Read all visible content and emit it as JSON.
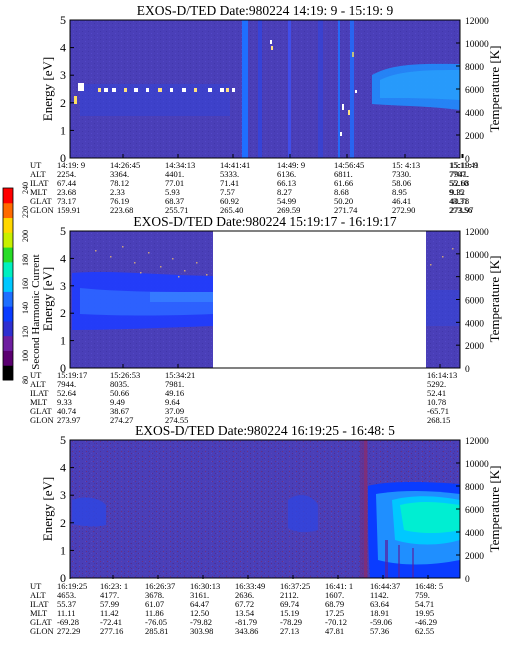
{
  "colors": {
    "background": "#4a3fb8",
    "colorbar": [
      "#000000",
      "#5a0070",
      "#6e1ea0",
      "#2f2fd0",
      "#0a3cff",
      "#1f6fff",
      "#00c8ff",
      "#00f0c0",
      "#28dc28",
      "#c8f000",
      "#ffd800",
      "#ff6a00",
      "#ff0000"
    ]
  },
  "colorbar": {
    "label": "Second Harmonic Current",
    "ticks": [
      "80",
      "100",
      "120",
      "140",
      "160",
      "180",
      "200",
      "220",
      "240"
    ]
  },
  "chart_data": [
    {
      "type": "heatmap",
      "title": "EXOS-D/TED   Date:980224  14:19: 9 - 15:19: 9",
      "ylabel": "Energy [eV]",
      "ylabel_right": "Temperature [K]",
      "ylim": [
        0,
        5
      ],
      "y_ticks": [
        "0",
        "1",
        "2",
        "3",
        "4",
        "5"
      ],
      "ylim_right": [
        0,
        12000
      ],
      "y_ticks_right": [
        "0",
        "2000",
        "4000",
        "6000",
        "8000",
        "10000",
        "12000"
      ],
      "data_gap": null,
      "orbit_table": {
        "labels": [
          "UT",
          "ALT",
          "ILAT",
          "MLT",
          "GLAT",
          "GLON"
        ],
        "columns": [
          {
            "ut": "14:19: 9",
            "alt": "2254.",
            "ilat": "67.44",
            "mlt": "23.68",
            "glat": "73.17",
            "glon": "159.91"
          },
          {
            "ut": "14:26:45",
            "alt": "3364.",
            "ilat": "78.12",
            "mlt": "2.33",
            "glat": "76.19",
            "glon": "223.68"
          },
          {
            "ut": "14:34:13",
            "alt": "4401.",
            "ilat": "77.01",
            "mlt": "5.93",
            "glat": "68.37",
            "glon": "255.71"
          },
          {
            "ut": "14:41:41",
            "alt": "5333.",
            "ilat": "71.41",
            "mlt": "7.57",
            "glat": "60.92",
            "glon": "265.40"
          },
          {
            "ut": "14:49: 9",
            "alt": "6136.",
            "ilat": "66.13",
            "mlt": "8.27",
            "glat": "54.99",
            "glon": "269.59"
          },
          {
            "ut": "14:56:45",
            "alt": "6811.",
            "ilat": "61.66",
            "mlt": "8.68",
            "glat": "50.20",
            "glon": "271.74"
          },
          {
            "ut": "15: 4:13",
            "alt": "7330.",
            "ilat": "58.06",
            "mlt": "8.95",
            "glat": "46.41",
            "glon": "272.90"
          },
          {
            "ut": "15:11:41",
            "alt": "7707.",
            "ilat": "55.10",
            "mlt": "9.15",
            "glat": "43.31",
            "glon": "273.56"
          },
          {
            "ut": "15:19: 9",
            "alt": "7941.",
            "ilat": "52.68",
            "mlt": "9.32",
            "glat": "40.78",
            "glon": "273.97"
          }
        ]
      }
    },
    {
      "type": "heatmap",
      "title": "EXOS-D/TED   Date:980224  15:19:17 - 16:19:17",
      "ylabel": "Energy [eV]",
      "ylabel_right": "Temperature [K]",
      "ylim": [
        0,
        5
      ],
      "y_ticks": [
        "0",
        "1",
        "2",
        "3",
        "4",
        "5"
      ],
      "ylim_right": [
        0,
        12000
      ],
      "y_ticks_right": [
        "0",
        "2000",
        "4000",
        "6000",
        "8000",
        "10000",
        "12000"
      ],
      "data_gap": [
        "15:40",
        "16:14"
      ],
      "orbit_table": {
        "labels": [
          "UT",
          "ALT",
          "ILAT",
          "MLT",
          "GLAT",
          "GLON"
        ],
        "columns": [
          {
            "ut": "15:19:17",
            "alt": "7944.",
            "ilat": "52.64",
            "mlt": "9.33",
            "glat": "40.74",
            "glon": "273.97"
          },
          {
            "ut": "15:26:53",
            "alt": "8035.",
            "ilat": "50.66",
            "mlt": "9.49",
            "glat": "38.67",
            "glon": "274.27"
          },
          {
            "ut": "15:34:21",
            "alt": "7981.",
            "ilat": "49.16",
            "mlt": "9.64",
            "glat": "37.09",
            "glon": "274.55"
          },
          {
            "ut": "16:14:13",
            "alt": "5292.",
            "ilat": "52.41",
            "mlt": "10.78",
            "glat": "-65.71",
            "glon": "268.15"
          }
        ]
      }
    },
    {
      "type": "heatmap",
      "title": "EXOS-D/TED   Date:980224  16:19:25 - 16:48: 5",
      "ylabel": "Energy [eV]",
      "ylabel_right": "Temperature [K]",
      "ylim": [
        0,
        5
      ],
      "y_ticks": [
        "0",
        "1",
        "2",
        "3",
        "4",
        "5"
      ],
      "ylim_right": [
        0,
        12000
      ],
      "y_ticks_right": [
        "0",
        "2000",
        "4000",
        "6000",
        "8000",
        "10000",
        "12000"
      ],
      "data_gap": null,
      "orbit_table": {
        "labels": [
          "UT",
          "ALT",
          "ILAT",
          "MLT",
          "GLAT",
          "GLON"
        ],
        "columns": [
          {
            "ut": "16:19:25",
            "alt": "4653.",
            "ilat": "55.37",
            "mlt": "11.11",
            "glat": "-69.28",
            "glon": "272.29"
          },
          {
            "ut": "16:23: 1",
            "alt": "4177.",
            "ilat": "57.99",
            "mlt": "11.42",
            "glat": "-72.41",
            "glon": "277.16"
          },
          {
            "ut": "16:26:37",
            "alt": "3678.",
            "ilat": "61.07",
            "mlt": "11.86",
            "glat": "-76.05",
            "glon": "285.81"
          },
          {
            "ut": "16:30:13",
            "alt": "3161.",
            "ilat": "64.47",
            "mlt": "12.50",
            "glat": "-79.82",
            "glon": "303.98"
          },
          {
            "ut": "16:33:49",
            "alt": "2636.",
            "ilat": "67.72",
            "mlt": "13.54",
            "glat": "-81.79",
            "glon": "343.86"
          },
          {
            "ut": "16:37:25",
            "alt": "2112.",
            "ilat": "69.74",
            "mlt": "15.19",
            "glat": "-78.29",
            "glon": "27.13"
          },
          {
            "ut": "16:41: 1",
            "alt": "1607.",
            "ilat": "68.79",
            "mlt": "17.25",
            "glat": "-70.12",
            "glon": "47.81"
          },
          {
            "ut": "16:44:37",
            "alt": "1142.",
            "ilat": "63.64",
            "mlt": "18.91",
            "glat": "-59.06",
            "glon": "57.36"
          },
          {
            "ut": "16:48: 5",
            "alt": "759.",
            "ilat": "54.71",
            "mlt": "19.95",
            "glat": "-46.29",
            "glon": "62.55"
          }
        ]
      }
    }
  ]
}
